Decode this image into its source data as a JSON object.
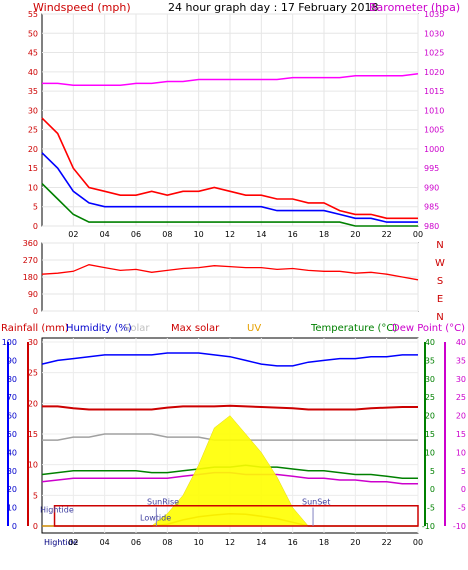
{
  "chart_data": [
    {
      "type": "line",
      "title": "24 hour graph day : 17 February 2018",
      "ylabel_left": "Windspeed (mph)",
      "ylabel_right": "Barometer (hpa)",
      "ylim_left": [
        0,
        55
      ],
      "ylim_right": [
        980,
        1035
      ],
      "yticks_left": [
        "0",
        "5",
        "10",
        "15",
        "20",
        "25",
        "30",
        "35",
        "40",
        "45",
        "50",
        "55"
      ],
      "yticks_right": [
        "980",
        "985",
        "990",
        "995",
        "1000",
        "1005",
        "1010",
        "1015",
        "1020",
        "1025",
        "1030",
        "1035"
      ],
      "xticks": [
        "02",
        "04",
        "06",
        "08",
        "10",
        "12",
        "14",
        "16",
        "18",
        "20",
        "22",
        "00"
      ],
      "hours": [
        0,
        1,
        2,
        3,
        4,
        5,
        6,
        7,
        8,
        9,
        10,
        11,
        12,
        13,
        14,
        15,
        16,
        17,
        18,
        19,
        20,
        21,
        22,
        23,
        24
      ],
      "series": [
        {
          "key": "gust",
          "color": "#ff0000",
          "values": [
            28,
            24,
            15,
            10,
            9,
            8,
            8,
            9,
            8,
            9,
            9,
            10,
            9,
            8,
            8,
            7,
            7,
            6,
            6,
            4,
            3,
            3,
            2,
            2,
            2
          ]
        },
        {
          "key": "wind",
          "color": "#0000ff",
          "values": [
            19,
            15,
            9,
            6,
            5,
            5,
            5,
            5,
            5,
            5,
            5,
            5,
            5,
            5,
            5,
            4,
            4,
            4,
            4,
            3,
            2,
            2,
            1,
            1,
            1
          ]
        },
        {
          "key": "avg",
          "color": "#008000",
          "values": [
            11,
            7,
            3,
            1,
            1,
            1,
            1,
            1,
            1,
            1,
            1,
            1,
            1,
            1,
            1,
            1,
            1,
            1,
            1,
            1,
            0,
            0,
            0,
            0,
            0
          ]
        },
        {
          "key": "baro",
          "color": "#ff00ff",
          "axis": "right",
          "values": [
            1017,
            1017,
            1016.5,
            1016.5,
            1016.5,
            1016.5,
            1017,
            1017,
            1017.5,
            1017.5,
            1018,
            1018,
            1018,
            1018,
            1018,
            1018,
            1018.5,
            1018.5,
            1018.5,
            1018.5,
            1019,
            1019,
            1019,
            1019,
            1019.5
          ]
        }
      ]
    },
    {
      "type": "line",
      "ylim": [
        0,
        360
      ],
      "yticks": [
        "0",
        "90",
        "180",
        "270",
        "360"
      ],
      "compass_labels": [
        "N",
        "W",
        "S",
        "E",
        "N"
      ],
      "hours": [
        0,
        1,
        2,
        3,
        4,
        5,
        6,
        7,
        8,
        9,
        10,
        11,
        12,
        13,
        14,
        15,
        16,
        17,
        18,
        19,
        20,
        21,
        22,
        23,
        24
      ],
      "series": [
        {
          "key": "direction",
          "color": "#ff0000",
          "values": [
            195,
            200,
            210,
            245,
            230,
            215,
            220,
            205,
            215,
            225,
            230,
            240,
            235,
            230,
            230,
            220,
            225,
            215,
            210,
            210,
            200,
            205,
            195,
            180,
            165
          ]
        }
      ]
    },
    {
      "type": "line",
      "labels": {
        "rainfall": "Rainfall (mm)",
        "humidity": "Humidity (%)",
        "solar": "Solar",
        "maxsolar": "Max solar",
        "uv": "UV",
        "temperature": "Temperature (°C)",
        "dewpoint": "Dew Point (°C)"
      },
      "label_colors": {
        "rainfall": "#cc0000",
        "humidity": "#0000cc",
        "solar": "#c0c0c0",
        "maxsolar": "#cc0000",
        "uv": "#e6a000",
        "temperature": "#008000",
        "dewpoint": "#cc00cc"
      },
      "axis_rain": [
        "0",
        "5",
        "10",
        "15",
        "20",
        "25",
        "30"
      ],
      "axis_humidity": [
        "0",
        "10",
        "20",
        "30",
        "40",
        "50",
        "60",
        "70",
        "80",
        "90",
        "100"
      ],
      "axis_temp": [
        "-10",
        "-5",
        "0",
        "5",
        "10",
        "15",
        "20",
        "25",
        "30",
        "35",
        "40"
      ],
      "axis_dew": [
        "-10",
        "-5",
        "0",
        "5",
        "10",
        "15",
        "20",
        "25",
        "30",
        "35",
        "40"
      ],
      "xticks": [
        "Hightide",
        "02",
        "04",
        "06",
        "08",
        "10",
        "12",
        "14",
        "16",
        "18",
        "20",
        "22",
        "00"
      ],
      "annotations": {
        "hightide": "Hightide",
        "lowtide": "Lowtide",
        "sunrise": "SunRise",
        "sunset": "SunSet"
      },
      "hours": [
        0,
        1,
        2,
        3,
        4,
        5,
        6,
        7,
        8,
        9,
        10,
        11,
        12,
        13,
        14,
        15,
        16,
        17,
        18,
        19,
        20,
        21,
        22,
        23,
        24
      ],
      "series": [
        {
          "key": "humidity",
          "color": "#0000ff",
          "values": [
            88,
            90,
            91,
            92,
            93,
            93,
            93,
            93,
            94,
            94,
            94,
            93,
            92,
            90,
            88,
            87,
            87,
            89,
            90,
            91,
            91,
            92,
            92,
            93,
            93
          ]
        },
        {
          "key": "temperature",
          "color": "#008000",
          "values": [
            4,
            4.5,
            5,
            5,
            5,
            5,
            5,
            4.5,
            4.5,
            5,
            5.5,
            6,
            6,
            6.5,
            6,
            6,
            5.5,
            5,
            5,
            4.5,
            4,
            4,
            3.5,
            3,
            3
          ]
        },
        {
          "key": "dewpoint",
          "color": "#cc00cc",
          "values": [
            2,
            2.5,
            3,
            3,
            3,
            3,
            3,
            3,
            3,
            3.5,
            4,
            4.5,
            4.5,
            4,
            4,
            4,
            3.5,
            3,
            3,
            2.5,
            2.5,
            2,
            2,
            1.5,
            1.5
          ]
        },
        {
          "key": "rainfall",
          "color": "#cc0000",
          "values": [
            19.5,
            19.5,
            19.2,
            19,
            19,
            19,
            19,
            19,
            19.3,
            19.5,
            19.5,
            19.5,
            19.6,
            19.5,
            19.4,
            19.3,
            19.2,
            19,
            19,
            19,
            19,
            19.2,
            19.3,
            19.4,
            19.4
          ]
        },
        {
          "key": "gray",
          "color": "#a0a0a0",
          "values": [
            14,
            14,
            14.5,
            14.5,
            15,
            15,
            15,
            15,
            14.5,
            14.5,
            14.5,
            14,
            14,
            14,
            14,
            14,
            14,
            14,
            14,
            14,
            14,
            14,
            14,
            14,
            14
          ]
        },
        {
          "key": "uv",
          "color": "#c05000",
          "values": [
            0,
            0,
            0,
            0,
            0,
            0,
            0,
            0,
            0.3,
            1,
            1.5,
            1.8,
            2,
            1.9,
            1.6,
            1.2,
            0.6,
            0,
            0,
            0,
            0,
            0,
            0,
            0,
            0
          ]
        },
        {
          "key": "solar",
          "color": "#ffff00",
          "values": [
            0,
            0,
            0,
            0,
            0,
            0,
            0,
            0,
            2,
            5,
            10,
            16,
            18,
            15,
            12,
            8,
            3,
            0,
            0,
            0,
            0,
            0,
            0,
            0,
            0
          ]
        }
      ]
    }
  ]
}
